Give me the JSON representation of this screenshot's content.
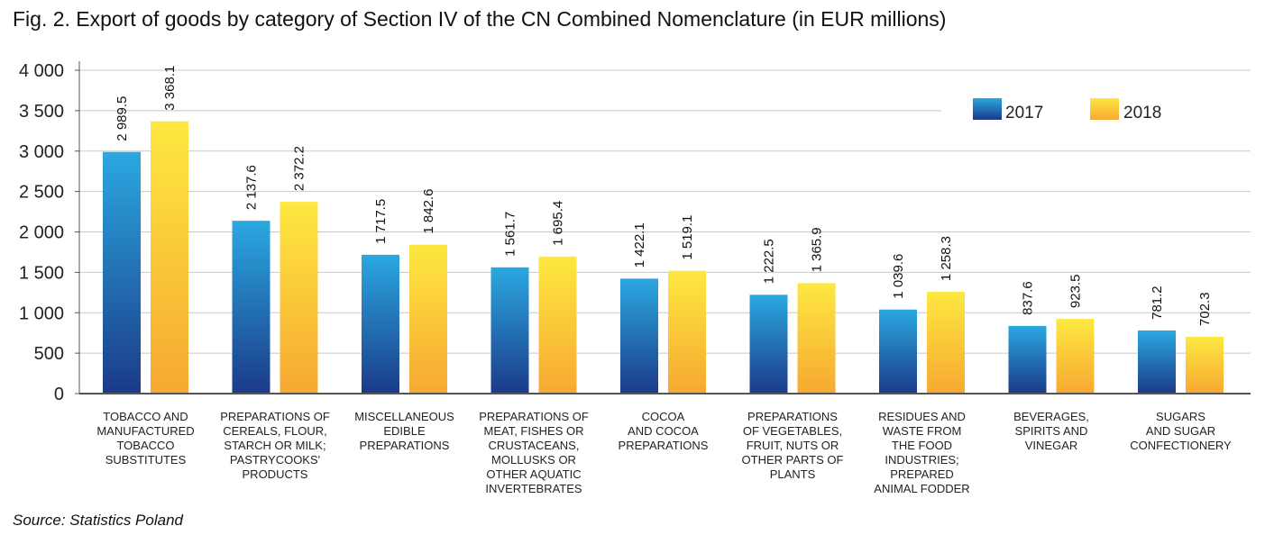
{
  "title": "Fig. 2. Export of goods by category of Section IV of the CN Combined Nomenclature (in EUR millions)",
  "source": "Source: Statistics Poland",
  "colors": {
    "s2017_top": "#2ba8e0",
    "s2017_bottom": "#1b3a8a",
    "s2018_top": "#fde840",
    "s2018_bottom": "#f7a832",
    "grid": "#c8c8c8",
    "axis": "#555555"
  },
  "chart_data": {
    "type": "bar",
    "title": "Fig. 2. Export of goods by category of Section IV of the CN Combined Nomenclature (in EUR millions)",
    "xlabel": "",
    "ylabel": "",
    "ylim": [
      0,
      4000
    ],
    "yticks": [
      0,
      500,
      1000,
      1500,
      2000,
      2500,
      3000,
      3500,
      4000
    ],
    "ytick_labels": [
      "0",
      "500",
      "1 000",
      "1 500",
      "2 000",
      "2 500",
      "3 000",
      "3 500",
      "4 000"
    ],
    "grid": true,
    "legend_position": "top-right",
    "categories": [
      [
        "TOBACCO AND",
        "MANUFACTURED",
        "TOBACCO",
        "SUBSTITUTES"
      ],
      [
        "PREPARATIONS OF",
        "CEREALS, FLOUR,",
        "STARCH OR MILK;",
        "PASTRYCOOKS'",
        "PRODUCTS"
      ],
      [
        "MISCELLANEOUS",
        "EDIBLE",
        "PREPARATIONS"
      ],
      [
        "PREPARATIONS OF",
        "MEAT, FISHES OR",
        "CRUSTACEANS,",
        "MOLLUSKS OR",
        "OTHER AQUATIC",
        "INVERTEBRATES"
      ],
      [
        "COCOA",
        "AND COCOA",
        "PREPARATIONS"
      ],
      [
        "PREPARATIONS",
        "OF VEGETABLES,",
        "FRUIT, NUTS OR",
        "OTHER PARTS OF",
        "PLANTS"
      ],
      [
        "RESIDUES AND",
        "WASTE FROM",
        "THE FOOD",
        "INDUSTRIES;",
        "PREPARED",
        "ANIMAL FODDER"
      ],
      [
        "BEVERAGES,",
        "SPIRITS AND",
        "VINEGAR"
      ],
      [
        "SUGARS",
        "AND SUGAR",
        "CONFECTIONERY"
      ]
    ],
    "series": [
      {
        "name": "2017",
        "values": [
          2989.5,
          2137.6,
          1717.5,
          1561.7,
          1422.1,
          1222.5,
          1039.6,
          837.6,
          781.2
        ],
        "labels": [
          "2 989.5",
          "2 137.6",
          "1 717.5",
          "1 561.7",
          "1 422.1",
          "1 222.5",
          "1 039.6",
          "837.6",
          "781.2"
        ]
      },
      {
        "name": "2018",
        "values": [
          3368.1,
          2372.2,
          1842.6,
          1695.4,
          1519.1,
          1365.9,
          1258.3,
          923.5,
          702.3
        ],
        "labels": [
          "3 368.1",
          "2 372.2",
          "1 842.6",
          "1 695.4",
          "1 519.1",
          "1 365.9",
          "1 258.3",
          "923.5",
          "702.3"
        ]
      }
    ]
  }
}
